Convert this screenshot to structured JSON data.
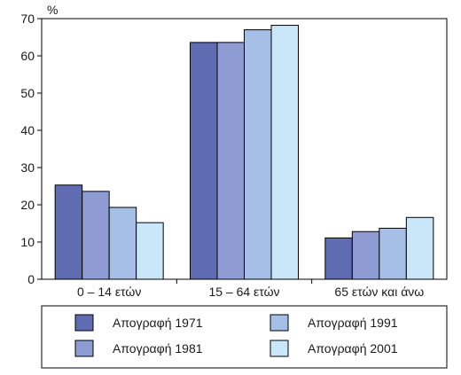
{
  "chart_data": {
    "type": "bar",
    "ylabel": "%",
    "ylim": [
      0,
      70
    ],
    "yticks": [
      0,
      10,
      20,
      30,
      40,
      50,
      60,
      70
    ],
    "grid": false,
    "legend_position": "bottom",
    "categories": [
      "0 – 14 ετών",
      "15 – 64 ετών",
      "65 ετών και άνω"
    ],
    "series": [
      {
        "name": "Απογραφή 1971",
        "color": "#5f6cb1",
        "values": [
          25.3,
          63.6,
          11.1
        ]
      },
      {
        "name": "Απογραφή 1981",
        "color": "#8f9bd3",
        "values": [
          23.6,
          63.6,
          12.8
        ]
      },
      {
        "name": "Απογραφή 1991",
        "color": "#a6bfe6",
        "values": [
          19.3,
          67.0,
          13.7
        ]
      },
      {
        "name": "Απογραφή 2001",
        "color": "#cae7fa",
        "values": [
          15.2,
          68.2,
          16.6
        ]
      }
    ]
  }
}
